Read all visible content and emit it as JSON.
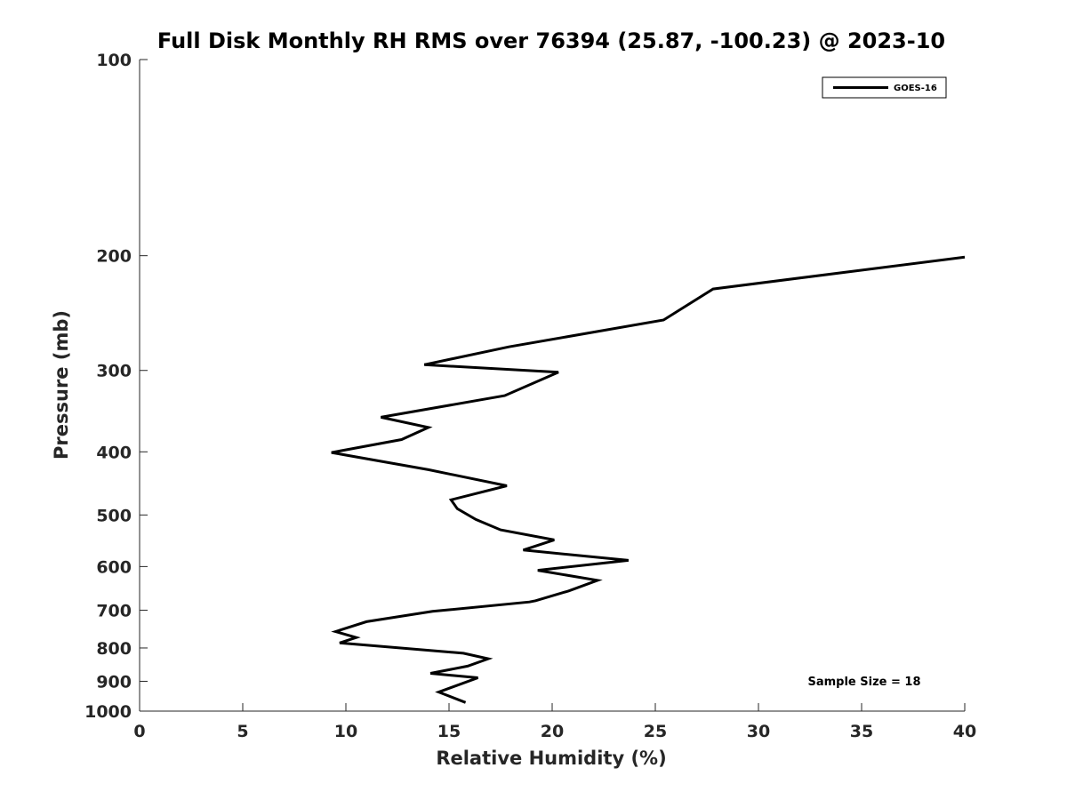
{
  "chart_data": {
    "type": "line",
    "title": "Full Disk Monthly RH RMS over 76394 (25.87, -100.23) @ 2023-10",
    "xlabel": "Relative Humidity (%)",
    "ylabel": "Pressure (mb)",
    "xlim": [
      0,
      40
    ],
    "ylim": [
      100,
      1000
    ],
    "y_scale": "log",
    "y_reversed": true,
    "x_ticks": [
      "0",
      "5",
      "10",
      "15",
      "20",
      "25",
      "30",
      "35",
      "40"
    ],
    "y_ticks": [
      "100",
      "200",
      "300",
      "400",
      "500",
      "600",
      "700",
      "800",
      "900",
      "1000"
    ],
    "grid": false,
    "legend_position": "top-right",
    "annotation": "Sample Size = 18",
    "series": [
      {
        "name": "GOES-16",
        "color": "#000000",
        "points": [
          [
            40.0,
            201
          ],
          [
            27.8,
            225
          ],
          [
            25.4,
            251
          ],
          [
            17.9,
            276
          ],
          [
            13.8,
            294
          ],
          [
            20.3,
            302
          ],
          [
            17.7,
            328
          ],
          [
            11.7,
            354
          ],
          [
            14.0,
            367
          ],
          [
            12.7,
            383
          ],
          [
            9.3,
            401
          ],
          [
            14.0,
            426
          ],
          [
            17.8,
            451
          ],
          [
            15.1,
            474
          ],
          [
            15.4,
            489
          ],
          [
            16.3,
            508
          ],
          [
            17.5,
            527
          ],
          [
            20.1,
            546
          ],
          [
            18.6,
            566
          ],
          [
            23.7,
            587
          ],
          [
            19.3,
            608
          ],
          [
            22.2,
            630
          ],
          [
            20.8,
            654
          ],
          [
            19.2,
            677
          ],
          [
            18.9,
            680
          ],
          [
            14.2,
            703
          ],
          [
            11.0,
            729
          ],
          [
            9.5,
            755
          ],
          [
            10.5,
            771
          ],
          [
            9.7,
            786
          ],
          [
            15.7,
            815
          ],
          [
            16.9,
            831
          ],
          [
            15.9,
            853
          ],
          [
            14.1,
            875
          ],
          [
            16.4,
            889
          ],
          [
            14.5,
            935
          ],
          [
            15.8,
            970
          ]
        ]
      }
    ]
  }
}
